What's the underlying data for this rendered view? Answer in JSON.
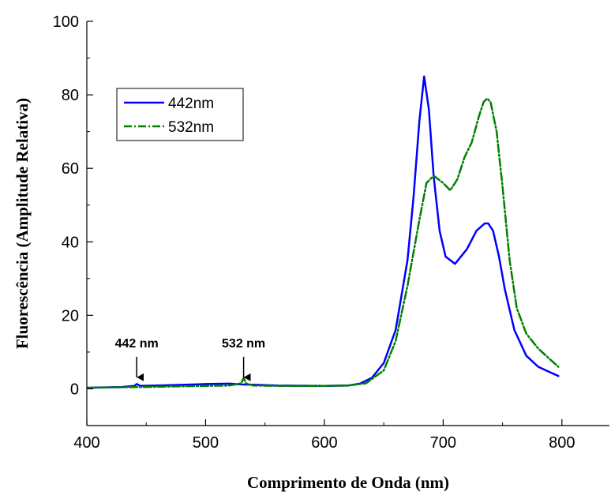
{
  "chart_data": {
    "type": "line",
    "title": "",
    "xlabel": "Comprimento de Onda (nm)",
    "ylabel": "Fluorescência (Amplitude Relativa)",
    "xlim": [
      400,
      840
    ],
    "ylim": [
      -10,
      100
    ],
    "xticks": [
      400,
      500,
      600,
      700,
      800
    ],
    "yticks": [
      0,
      20,
      40,
      60,
      80,
      100
    ],
    "legend": "top-left",
    "grid": false,
    "series": [
      {
        "name": "442nm",
        "color": "#0000ff",
        "style": "solid",
        "x": [
          400,
          430,
          440,
          442,
          445,
          460,
          500,
          520,
          530,
          540,
          560,
          600,
          620,
          630,
          640,
          650,
          660,
          670,
          675,
          680,
          684,
          688,
          692,
          697,
          702,
          710,
          720,
          728,
          735,
          738,
          742,
          747,
          752,
          760,
          770,
          780,
          790,
          797
        ],
        "y": [
          0.3,
          0.5,
          0.8,
          1.3,
          0.8,
          0.9,
          1.3,
          1.4,
          1.2,
          1.1,
          0.9,
          0.8,
          0.9,
          1.4,
          3,
          7,
          16,
          35,
          52,
          73,
          85,
          76,
          58,
          43,
          36,
          34,
          38,
          43,
          45,
          45,
          43,
          36,
          27,
          16,
          9,
          6,
          4.5,
          3.5
        ]
      },
      {
        "name": "532nm",
        "color": "#008000",
        "style": "dashed",
        "x": [
          400,
          450,
          500,
          520,
          530,
          532,
          534,
          540,
          560,
          600,
          620,
          635,
          650,
          660,
          670,
          680,
          686,
          692,
          700,
          706,
          712,
          718,
          724,
          730,
          734,
          737,
          740,
          745,
          750,
          756,
          762,
          770,
          780,
          790,
          797
        ],
        "y": [
          0.3,
          0.5,
          0.8,
          0.9,
          1.5,
          3,
          1.5,
          0.9,
          0.8,
          0.8,
          0.9,
          1.5,
          5,
          13,
          28,
          46,
          56,
          58,
          56,
          54,
          57,
          63,
          67,
          74,
          78,
          79,
          78,
          70,
          55,
          35,
          22,
          15,
          11,
          8,
          6
        ]
      }
    ],
    "annotations": [
      {
        "text": "442 nm",
        "x": 442,
        "y_arrow_start": 10,
        "y_arrow_end": 4
      },
      {
        "text": "532 nm",
        "x": 532,
        "y_arrow_start": 10,
        "y_arrow_end": 4
      }
    ],
    "colors": {
      "axis": "#000000",
      "background": "#ffffff"
    }
  }
}
